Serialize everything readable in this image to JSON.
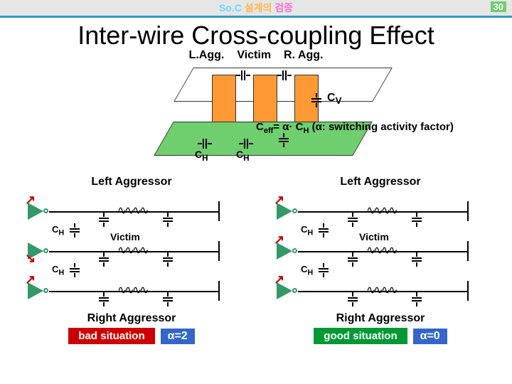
{
  "header": {
    "text_parts": [
      {
        "t": "So.",
        "c": "#66D9FF"
      },
      {
        "t": "C ",
        "c": "#66D9FF"
      },
      {
        "t": "설계의 ",
        "c": "#FFB84D"
      },
      {
        "t": "검증",
        "c": "#FF6FCF"
      }
    ],
    "bg": "#E6E6E6",
    "page_num": "30",
    "page_num_bg": "#6FCF6F",
    "line_color": "#3399CC"
  },
  "title": "Inter-wire Cross-coupling Effect",
  "top_labels": {
    "l": "L.Agg.",
    "v": "Victim",
    "r": "R. Agg."
  },
  "diag3d": {
    "cv": "Cᵥ",
    "ch1": "C",
    "ch1_sub": "H",
    "ch2": "C",
    "ch2_sub": "H",
    "bar_color": "#FF9933",
    "plate_color": "#6FCF6F"
  },
  "equation": {
    "pre": "C",
    "sub1": "eff",
    "mid": "= α· C",
    "sub2": "H",
    "post": " (α: switching activity factor)"
  },
  "circuit_left": {
    "title": "Left Aggressor",
    "victim": "Victim",
    "ch": "C",
    "ch_sub": "H",
    "right_agg": "Right Aggressor",
    "sit": "bad situation",
    "sit_bg": "#CC0000",
    "alpha": "α=2",
    "alpha_bg": "#3366CC",
    "inv_color": "#339966"
  },
  "circuit_right": {
    "title": "Left Aggressor",
    "victim": "Victim",
    "ch": "C",
    "ch_sub": "H",
    "right_agg": "Right Aggressor",
    "sit": "good situation",
    "sit_bg": "#009933",
    "alpha": "α=0",
    "alpha_bg": "#3366CC",
    "inv_color": "#339966"
  }
}
